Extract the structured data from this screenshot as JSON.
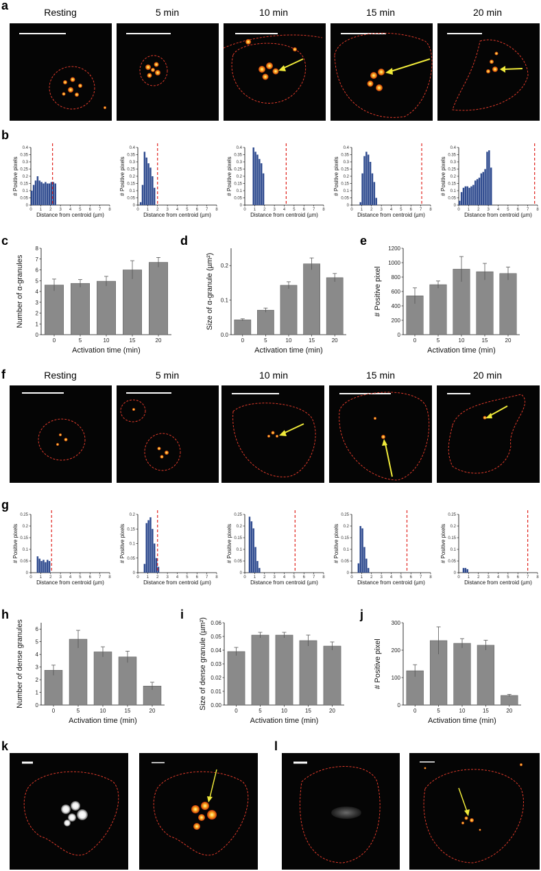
{
  "panel_labels": [
    "a",
    "b",
    "c",
    "d",
    "e",
    "f",
    "g",
    "h",
    "i",
    "j",
    "k",
    "l"
  ],
  "micrograph_titles_a": [
    "Resting",
    "5 min",
    "10 min",
    "15 min",
    "20 min"
  ],
  "micrograph_titles_f": [
    "Resting",
    "5 min",
    "10 min",
    "15 min",
    "20 min"
  ],
  "colors": {
    "hist_bar": "#2f4b8f",
    "bar_gray": "#8a8a8a",
    "outline": "#e03a2a",
    "arrow": "#f0ea3a",
    "cutoff_line": "#e0201a"
  },
  "chart_data": [
    {
      "id": "b1",
      "type": "bar",
      "ylabel": "# Positive pixels",
      "xlabel": "Distance from centroid (µm)",
      "xlim": [
        0,
        8
      ],
      "ylim": [
        0,
        0.4
      ],
      "yticks": [
        0,
        0.05,
        0.1,
        0.15,
        0.2,
        0.25,
        0.3,
        0.35,
        0.4
      ],
      "xticks": [
        0,
        1,
        2,
        3,
        4,
        5,
        6,
        7,
        8
      ],
      "bin_width": 0.2,
      "bin_start": 0.0,
      "values": [
        0.1,
        0.14,
        0.17,
        0.2,
        0.17,
        0.16,
        0.15,
        0.16,
        0.15,
        0.15,
        0.16,
        0.16,
        0.15
      ],
      "cutoff": 2.2
    },
    {
      "id": "b2",
      "type": "bar",
      "ylabel": "# Positive pixels",
      "xlabel": "Distance from centroid (µm)",
      "xlim": [
        0,
        8
      ],
      "ylim": [
        0,
        0.4
      ],
      "yticks": [
        0,
        0.05,
        0.1,
        0.15,
        0.2,
        0.25,
        0.3,
        0.35,
        0.4
      ],
      "xticks": [
        0,
        1,
        2,
        3,
        4,
        5,
        6,
        7,
        8
      ],
      "bin_width": 0.2,
      "bin_start": 0.2,
      "values": [
        0.02,
        0.14,
        0.37,
        0.33,
        0.29,
        0.26,
        0.2,
        0.12
      ],
      "cutoff": 2.0
    },
    {
      "id": "b3",
      "type": "bar",
      "ylabel": "# Positive pixels",
      "xlabel": "Distance from centroid (µm)",
      "xlim": [
        0,
        8
      ],
      "ylim": [
        0,
        0.4
      ],
      "yticks": [
        0,
        0.05,
        0.1,
        0.15,
        0.2,
        0.25,
        0.3,
        0.35,
        0.4
      ],
      "xticks": [
        0,
        1,
        2,
        3,
        4,
        5,
        6,
        7,
        8
      ],
      "bin_width": 0.2,
      "bin_start": 0.8,
      "values": [
        0.41,
        0.37,
        0.35,
        0.32,
        0.29,
        0.22
      ],
      "cutoff": 4.2
    },
    {
      "id": "b4",
      "type": "bar",
      "ylabel": "# Positive pixels",
      "xlabel": "Distance from centroid (µm)",
      "xlim": [
        0,
        8
      ],
      "ylim": [
        0,
        0.4
      ],
      "yticks": [
        0,
        0.05,
        0.1,
        0.15,
        0.2,
        0.25,
        0.3,
        0.35,
        0.4
      ],
      "xticks": [
        0,
        1,
        2,
        3,
        4,
        5,
        6,
        7,
        8
      ],
      "bin_width": 0.2,
      "bin_start": 0.8,
      "values": [
        0.02,
        0.22,
        0.34,
        0.37,
        0.35,
        0.3,
        0.22,
        0.16,
        0.05
      ],
      "cutoff": 7.1
    },
    {
      "id": "b5",
      "type": "bar",
      "ylabel": "# Positive pixels",
      "xlabel": "Distance from centroid (µm)",
      "xlim": [
        0,
        8
      ],
      "ylim": [
        0,
        0.4
      ],
      "yticks": [
        0,
        0.05,
        0.1,
        0.15,
        0.2,
        0.25,
        0.3,
        0.35,
        0.4
      ],
      "xticks": [
        0,
        1,
        2,
        3,
        4,
        5,
        6,
        7,
        8
      ],
      "bin_width": 0.2,
      "bin_start": 0.0,
      "values": [
        0.03,
        0.09,
        0.12,
        0.13,
        0.13,
        0.12,
        0.13,
        0.14,
        0.17,
        0.18,
        0.19,
        0.22,
        0.23,
        0.25,
        0.37,
        0.38,
        0.26
      ],
      "cutoff": 7.7
    },
    {
      "id": "c",
      "type": "bar",
      "ylabel": "Number of α-granules",
      "xlabel": "Activation time (min)",
      "categories": [
        "0",
        "5",
        "10",
        "15",
        "20"
      ],
      "values": [
        4.6,
        4.75,
        4.95,
        6.0,
        6.7
      ],
      "errors": [
        0.55,
        0.35,
        0.45,
        0.85,
        0.45
      ],
      "ylim": [
        0,
        8
      ],
      "yticks": [
        0,
        1,
        2,
        3,
        4,
        5,
        6,
        7,
        8
      ]
    },
    {
      "id": "d",
      "type": "bar",
      "ylabel": "Size of α-granule (µm²)",
      "xlabel": "Activation time (min)",
      "categories": [
        "0",
        "5",
        "10",
        "15",
        "20"
      ],
      "values": [
        0.043,
        0.071,
        0.143,
        0.205,
        0.165
      ],
      "errors": [
        0.003,
        0.006,
        0.01,
        0.017,
        0.012
      ],
      "ylim": [
        0,
        0.25
      ],
      "yticks": [
        0,
        0.1,
        0.2
      ],
      "ytick_labels": [
        "0.0",
        "0.1",
        "0.2"
      ]
    },
    {
      "id": "e",
      "type": "bar",
      "ylabel": "# Positive pixel",
      "xlabel": "Activation time (min)",
      "categories": [
        "0",
        "5",
        "10",
        "15",
        "20"
      ],
      "values": [
        540,
        695,
        910,
        875,
        850
      ],
      "errors": [
        110,
        50,
        175,
        115,
        90
      ],
      "ylim": [
        0,
        1200
      ],
      "yticks": [
        0,
        200,
        400,
        600,
        800,
        1000,
        1200
      ]
    },
    {
      "id": "g1",
      "type": "bar",
      "ylabel": "# Positive pixels",
      "xlabel": "Distance from centroid (µm)",
      "xlim": [
        0,
        8
      ],
      "ylim": [
        0,
        0.25
      ],
      "yticks": [
        0,
        0.05,
        0.1,
        0.15,
        0.2,
        0.25
      ],
      "xticks": [
        0,
        1,
        2,
        3,
        4,
        5,
        6,
        7,
        8
      ],
      "bin_width": 0.2,
      "bin_start": 0.6,
      "values": [
        0.07,
        0.06,
        0.05,
        0.055,
        0.045,
        0.055,
        0.05
      ],
      "cutoff": 2.1
    },
    {
      "id": "g2",
      "type": "bar",
      "ylabel": "# Positive pixels",
      "xlabel": "Distance from centroid (µm)",
      "xlim": [
        0,
        8
      ],
      "ylim": [
        0,
        0.2
      ],
      "yticks": [
        0,
        0.05,
        0.1,
        0.15,
        0.2
      ],
      "xticks": [
        0,
        1,
        2,
        3,
        4,
        5,
        6,
        7,
        8
      ],
      "bin_width": 0.2,
      "bin_start": 0.6,
      "values": [
        0.03,
        0.17,
        0.18,
        0.19,
        0.15,
        0.1,
        0.05,
        0.02
      ],
      "cutoff": 2.0
    },
    {
      "id": "g3",
      "type": "bar",
      "ylabel": "# Positive pixels",
      "xlabel": "Distance from centroid (µm)",
      "xlim": [
        0,
        8
      ],
      "ylim": [
        0,
        0.25
      ],
      "yticks": [
        0,
        0.05,
        0.1,
        0.15,
        0.2,
        0.25
      ],
      "xticks": [
        0,
        1,
        2,
        3,
        4,
        5,
        6,
        7,
        8
      ],
      "bin_width": 0.2,
      "bin_start": 0.4,
      "values": [
        0.24,
        0.22,
        0.19,
        0.11,
        0.05,
        0.02
      ],
      "cutoff": 5.1
    },
    {
      "id": "g4",
      "type": "bar",
      "ylabel": "# Positive pixels",
      "xlabel": "Distance from centroid (µm)",
      "xlim": [
        0,
        8
      ],
      "ylim": [
        0,
        0.25
      ],
      "yticks": [
        0,
        0.05,
        0.1,
        0.15,
        0.2,
        0.25
      ],
      "xticks": [
        0,
        1,
        2,
        3,
        4,
        5,
        6,
        7,
        8
      ],
      "bin_width": 0.2,
      "bin_start": 0.6,
      "values": [
        0.04,
        0.2,
        0.19,
        0.11,
        0.06,
        0.02
      ],
      "cutoff": 5.6
    },
    {
      "id": "g5",
      "type": "bar",
      "ylabel": "# Positive pixels",
      "xlabel": "Distance from centroid (µm)",
      "xlim": [
        0,
        8
      ],
      "ylim": [
        0,
        0.25
      ],
      "yticks": [
        0,
        0.05,
        0.1,
        0.15,
        0.2,
        0.25
      ],
      "xticks": [
        0,
        1,
        2,
        3,
        4,
        5,
        6,
        7,
        8
      ],
      "bin_width": 0.2,
      "bin_start": 0.4,
      "values": [
        0.02,
        0.02,
        0.015
      ],
      "cutoff": 7.0
    },
    {
      "id": "h",
      "type": "bar",
      "ylabel": "Number of dense granules",
      "xlabel": "Activation time (min)",
      "categories": [
        "0",
        "5",
        "10",
        "15",
        "20"
      ],
      "values": [
        2.75,
        5.2,
        4.2,
        3.8,
        1.5
      ],
      "errors": [
        0.4,
        0.7,
        0.4,
        0.45,
        0.3
      ],
      "ylim": [
        0,
        6.5
      ],
      "yticks": [
        0,
        1,
        2,
        3,
        4,
        5,
        6
      ]
    },
    {
      "id": "i",
      "type": "bar",
      "ylabel": "Size of dense granule (µm²)",
      "xlabel": "Activation time (min)",
      "categories": [
        "0",
        "5",
        "10",
        "15",
        "20"
      ],
      "values": [
        0.039,
        0.051,
        0.051,
        0.047,
        0.043
      ],
      "errors": [
        0.003,
        0.002,
        0.002,
        0.004,
        0.003
      ],
      "ylim": [
        0,
        0.06
      ],
      "yticks": [
        0,
        0.01,
        0.02,
        0.03,
        0.04,
        0.05,
        0.06
      ],
      "ytick_labels": [
        "0.00",
        "0.01",
        "0.02",
        "0.03",
        "0.04",
        "0.05",
        "0.06"
      ]
    },
    {
      "id": "j",
      "type": "bar",
      "ylabel": "# Positive pixel",
      "xlabel": "Activation time (min)",
      "categories": [
        "0",
        "5",
        "10",
        "15",
        "20"
      ],
      "values": [
        125,
        235,
        225,
        218,
        35
      ],
      "errors": [
        22,
        50,
        17,
        18,
        4
      ],
      "ylim": [
        0,
        300
      ],
      "yticks": [
        0,
        100,
        200,
        300
      ]
    }
  ]
}
